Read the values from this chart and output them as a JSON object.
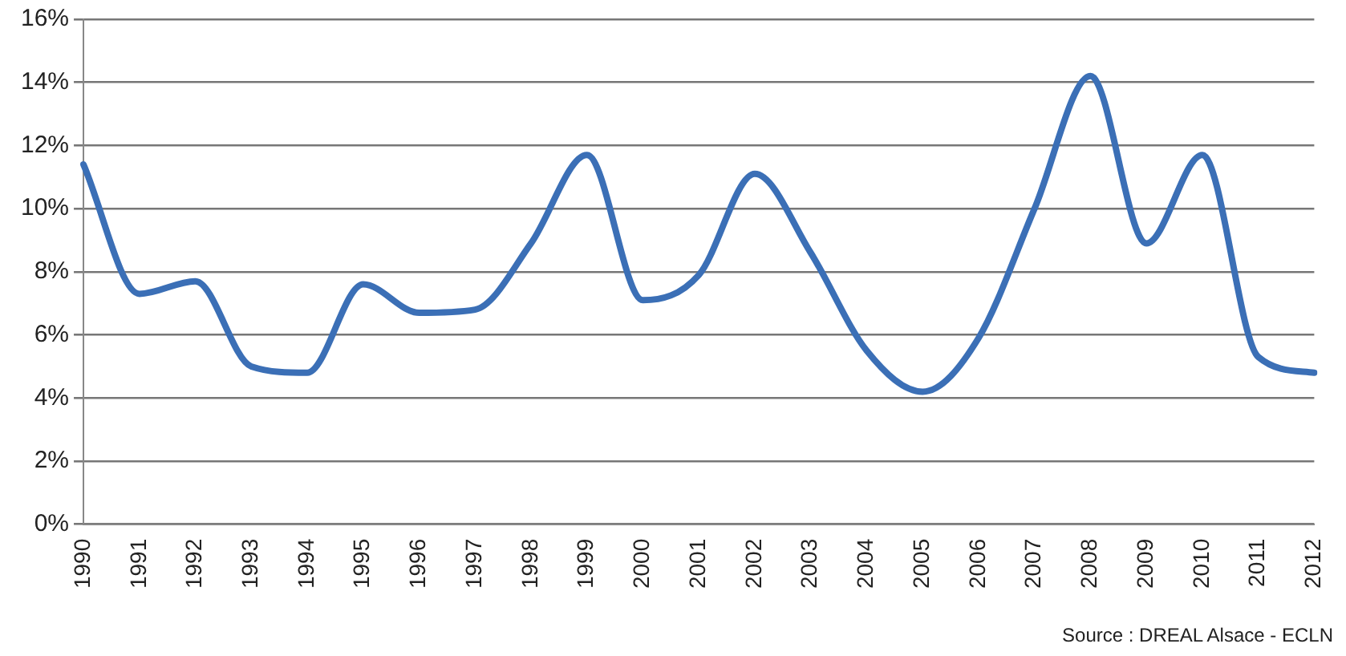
{
  "chart_data": {
    "type": "line",
    "categories": [
      "1990",
      "1991",
      "1992",
      "1993",
      "1994",
      "1995",
      "1996",
      "1997",
      "1998",
      "1999",
      "2000",
      "2001",
      "2002",
      "2003",
      "2004",
      "2005",
      "2006",
      "2007",
      "2008",
      "2009",
      "2010",
      "2011",
      "2012"
    ],
    "series": [
      {
        "color": "#3b6fb6",
        "values": [
          11.4,
          7.3,
          7.7,
          5.0,
          4.8,
          7.6,
          6.7,
          6.8,
          8.9,
          11.7,
          7.1,
          7.9,
          11.1,
          8.6,
          5.5,
          4.2,
          5.9,
          10.0,
          14.2,
          8.9,
          11.7,
          5.3,
          4.8
        ]
      }
    ],
    "ylim": [
      0,
      16
    ],
    "yticks": [
      {
        "value": 0,
        "label": "0%"
      },
      {
        "value": 2,
        "label": "2%"
      },
      {
        "value": 4,
        "label": "4%"
      },
      {
        "value": 6,
        "label": "6%"
      },
      {
        "value": 8,
        "label": "8%"
      },
      {
        "value": 10,
        "label": "10%"
      },
      {
        "value": 12,
        "label": "12%"
      },
      {
        "value": 14,
        "label": "14%"
      },
      {
        "value": 16,
        "label": "16%"
      }
    ],
    "grid": "y",
    "legend": false,
    "marker": "none",
    "line_style": "solid",
    "annotations": [
      "Source : DREAL Alsace - ECLN"
    ]
  }
}
